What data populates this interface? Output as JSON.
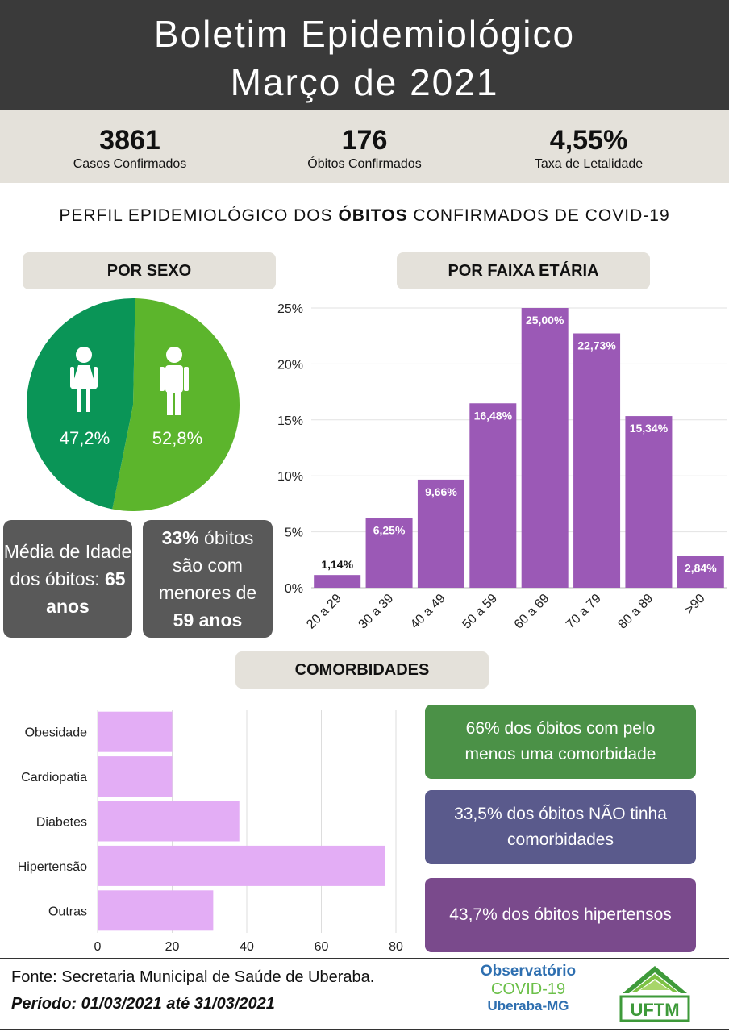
{
  "header": {
    "line1": "Boletim Epidemiológico",
    "line2": "Março de 2021"
  },
  "stats": [
    {
      "value": "3861",
      "label": "Casos Confirmados"
    },
    {
      "value": "176",
      "label": "Óbitos Confirmados"
    },
    {
      "value": "4,55%",
      "label": "Taxa de Letalidade"
    }
  ],
  "subtitle": {
    "before": "PERFIL EPIDEMIOLÓGICO DOS ",
    "bold": "ÓBITOS",
    "after": " CONFIRMADOS DE COVID-19"
  },
  "sections": {
    "sex": "POR SEXO",
    "age": "POR FAIXA ETÁRIA",
    "comorb": "COMORBIDADES"
  },
  "boxes": {
    "mean_age": {
      "p1": "Média de Idade dos óbitos: ",
      "b1": "65 anos"
    },
    "under59": {
      "b1": "33%",
      "p1": " óbitos são com menores de ",
      "b2": "59 anos"
    }
  },
  "info": [
    {
      "text": "66% dos óbitos com pelo menos uma comorbidade"
    },
    {
      "text": "33,5% dos óbitos NÃO tinha comorbidades"
    },
    {
      "text": "43,7% dos óbitos hipertensos"
    }
  ],
  "footer": {
    "source": "Fonte: Secretaria Municipal de Saúde de Uberaba.",
    "period": "Período: 01/03/2021 até 31/03/2021"
  },
  "logo": {
    "line1": "Observatório",
    "line2": "COVID-19",
    "line3": "Uberaba-MG",
    "ufm": "UFTM"
  },
  "colors": {
    "female": "#0a9557",
    "male": "#5cb52c",
    "age_bar": "#9b59b6",
    "comorb_bar": "#e3adf5"
  },
  "icons": [
    "female-icon",
    "male-icon"
  ],
  "chart_data": [
    {
      "type": "pie",
      "labels": [
        "47,2%",
        "52,8%"
      ],
      "values": [
        47.2,
        52.8
      ]
    },
    {
      "type": "bar",
      "categories": [
        "20 a 29",
        "30 a 39",
        "40 a 49",
        "50 a 59",
        "60 a 69",
        "70 a 79",
        "80 a 89",
        ">90"
      ],
      "values": [
        1.14,
        6.25,
        9.66,
        16.48,
        25.0,
        22.73,
        15.34,
        2.84
      ],
      "value_labels": [
        "1,14%",
        "6,25%",
        "9,66%",
        "16,48%",
        "25,00%",
        "22,73%",
        "15,34%",
        "2,84%"
      ],
      "yticks": [
        "0%",
        "5%",
        "10%",
        "15%",
        "20%",
        "25%"
      ],
      "ylim": [
        0,
        25
      ]
    },
    {
      "type": "bar",
      "orientation": "horizontal",
      "categories": [
        "Obesidade",
        "Cardiopatia",
        "Diabetes",
        "Hipertensão",
        "Outras"
      ],
      "values": [
        20,
        20,
        38,
        77,
        31
      ],
      "xticks": [
        "0",
        "20",
        "40",
        "60",
        "80"
      ],
      "xlim": [
        0,
        80
      ]
    }
  ]
}
